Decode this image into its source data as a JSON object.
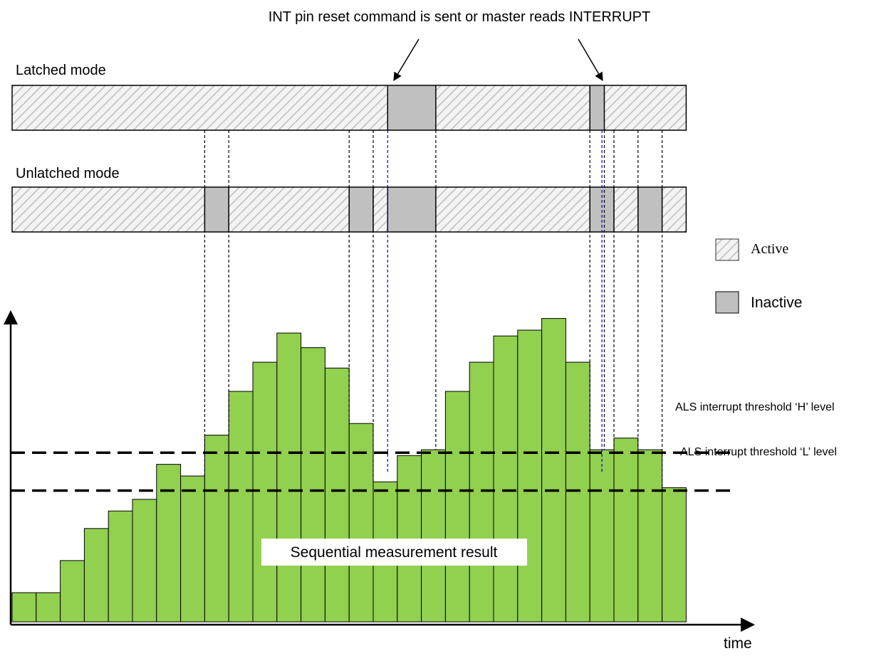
{
  "annotation": "INT pin reset command is sent or master reads INTERRUPT",
  "modes": {
    "latched": {
      "label": "Latched mode",
      "segments": [
        {
          "state": "active",
          "from": 0,
          "to": 15.6
        },
        {
          "state": "inactive",
          "from": 15.6,
          "to": 17.6
        },
        {
          "state": "active",
          "from": 17.6,
          "to": 24.0
        },
        {
          "state": "inactive",
          "from": 24.0,
          "to": 24.6
        },
        {
          "state": "active",
          "from": 24.6,
          "to": 28.0
        }
      ]
    },
    "unlatched": {
      "label": "Unlatched mode",
      "segments": [
        {
          "state": "active",
          "from": 0,
          "to": 8.0
        },
        {
          "state": "inactive",
          "from": 8.0,
          "to": 9.0
        },
        {
          "state": "active",
          "from": 9.0,
          "to": 14.0
        },
        {
          "state": "inactive",
          "from": 14.0,
          "to": 15.0
        },
        {
          "state": "active",
          "from": 15.0,
          "to": 15.6
        },
        {
          "state": "inactive",
          "from": 15.6,
          "to": 17.6
        },
        {
          "state": "active",
          "from": 17.6,
          "to": 24.0
        },
        {
          "state": "inactive",
          "from": 24.0,
          "to": 25.0
        },
        {
          "state": "active",
          "from": 25.0,
          "to": 26.0
        },
        {
          "state": "inactive",
          "from": 26.0,
          "to": 27.0
        },
        {
          "state": "active",
          "from": 27.0,
          "to": 28.0
        }
      ]
    }
  },
  "legend": {
    "active": "Active",
    "inactive": "Inactive"
  },
  "colors": {
    "bar": "#92d050",
    "inactive": "#c0c0c0",
    "active_hatch": "#bdbdbd",
    "guide_blue": "#0000cc"
  },
  "thresholds": {
    "high": {
      "label": "ALS interrupt threshold ‘H’ level",
      "value": 58
    },
    "low": {
      "label": "ALS interrupt threshold ‘L’ level",
      "value": 45
    }
  },
  "chart_data": {
    "type": "bar",
    "title": "",
    "xlabel": "time",
    "ylabel": "",
    "ylim": [
      0,
      100
    ],
    "bar_label": "Sequential measurement result",
    "values": [
      10,
      10,
      21,
      32,
      38,
      42,
      54,
      50,
      64,
      79,
      89,
      99,
      94,
      87,
      68,
      48,
      57,
      59,
      79,
      89,
      98,
      100,
      104,
      89,
      59,
      63,
      59,
      46
    ]
  },
  "guides": {
    "black": [
      8.0,
      9.0,
      14.0,
      15.0,
      17.6,
      24.0,
      24.6,
      25.0,
      26.0,
      27.0
    ],
    "blue": [
      15.6,
      24.5
    ]
  }
}
